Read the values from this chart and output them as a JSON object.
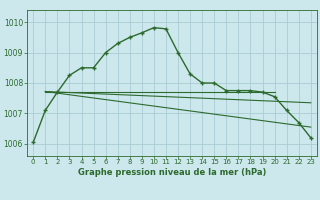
{
  "title": "Graphe pression niveau de la mer (hPa)",
  "bg_color": "#cce8ec",
  "grid_color": "#aaccd4",
  "line_color": "#2d6a2d",
  "xlim": [
    -0.5,
    23.5
  ],
  "ylim": [
    1005.6,
    1010.4
  ],
  "yticks": [
    1006,
    1007,
    1008,
    1009,
    1010
  ],
  "xticks": [
    0,
    1,
    2,
    3,
    4,
    5,
    6,
    7,
    8,
    9,
    10,
    11,
    12,
    13,
    14,
    15,
    16,
    17,
    18,
    19,
    20,
    21,
    22,
    23
  ],
  "main_series_x": [
    0,
    1,
    2,
    3,
    4,
    5,
    6,
    7,
    8,
    9,
    10,
    11,
    12,
    13,
    14,
    15,
    16,
    17,
    18,
    19,
    20,
    21,
    22,
    23
  ],
  "main_series_y": [
    1006.05,
    1007.1,
    1007.7,
    1008.25,
    1008.5,
    1008.5,
    1009.0,
    1009.3,
    1009.5,
    1009.65,
    1009.82,
    1009.78,
    1009.0,
    1008.3,
    1008.0,
    1008.0,
    1007.75,
    1007.75,
    1007.75,
    1007.7,
    1007.55,
    1007.1,
    1006.7,
    1006.2
  ],
  "flat_line_x": [
    1,
    20
  ],
  "flat_line_y": [
    1007.72,
    1007.72
  ],
  "trend_line1_x": [
    1,
    23
  ],
  "trend_line1_y": [
    1007.72,
    1007.35
  ],
  "trend_line2_x": [
    1,
    23
  ],
  "trend_line2_y": [
    1007.72,
    1006.55
  ]
}
